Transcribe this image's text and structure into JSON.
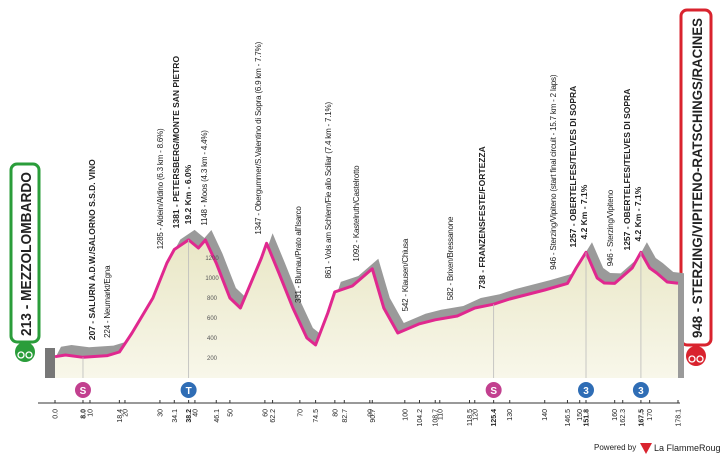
{
  "chart_data": {
    "type": "area",
    "start": "213 - MEZZOLOMBARDO",
    "finish": "948 - STERZING/VIPITENO-RATSCHINGS/RACINES",
    "x": [
      0,
      3,
      8,
      15,
      18.4,
      22,
      28,
      32,
      34.1,
      38.2,
      41,
      43,
      46.1,
      50,
      53,
      56,
      59,
      60.5,
      64,
      68,
      72,
      74.5,
      78,
      80,
      85,
      90.7,
      94,
      98,
      100,
      104.2,
      108.7,
      115,
      120,
      125.4,
      130,
      140,
      146.5,
      149,
      151.8,
      155,
      157,
      160,
      165,
      167.5,
      170,
      172,
      175,
      178.1
    ],
    "values": [
      213,
      230,
      207,
      224,
      260,
      450,
      800,
      1150,
      1285,
      1381,
      1300,
      1380,
      1148,
      800,
      700,
      950,
      1200,
      1347,
      1050,
      700,
      400,
      331,
      650,
      861,
      920,
      1092,
      700,
      450,
      480,
      542,
      582,
      620,
      700,
      738,
      790,
      880,
      946,
      1100,
      1257,
      1000,
      950,
      946,
      1100,
      1257,
      1100,
      1050,
      960,
      948
    ],
    "color": "#e0288f",
    "xlim": [
      0,
      178.1
    ],
    "ylim": [
      0,
      1400
    ],
    "yticks": [
      200,
      400,
      600,
      800,
      1000,
      1200
    ],
    "xticks": [
      {
        "value": 0,
        "label": "0.0"
      },
      {
        "value": 8,
        "label": "8.0"
      },
      10,
      18.4,
      20,
      30,
      34.1,
      38.2,
      40,
      46.1,
      50,
      60,
      62.2,
      70,
      74.5,
      80,
      82.7,
      90,
      90.7,
      100,
      104.2,
      108.7,
      110,
      118.5,
      120,
      125.4,
      130,
      140,
      146.5,
      150,
      151.8,
      160,
      162.3,
      167.5,
      170,
      178.1
    ],
    "annotations": [
      "207 - SALURN A.D.W./SALORNO S.S.D. VINO",
      "224 - Neumarkt/Egna",
      "1285 - Aldein/Aldino (6.3 km - 8.6%)",
      "1381 - PETERSBERG/MONTE SAN PIETRO",
      "19.2 Km - 6.0%",
      "1148 - Moos (4.3 km - 4.4%)",
      "1347 - Obergummer/S.Valentino di Sopra (6.9 km - 7.7%)",
      "331 - Blumau/Prato all'Isarco",
      "861 - Vols am Schlern/Fie allo Sciliar (7.4 km - 7.1%)",
      "1092 - Kastelruth/Castelrotto",
      "542 - Klausen/Chiusa",
      "582 - Brixen/Bressanone",
      "738 - FRANZENSFESTE/FORTEZZA",
      "946 - Sterzing/Vipiteno (start final circuit - 15.7 km - 2 laps)",
      "1257 - OBERTELFES/TELVES DI SOPRA",
      "4.2 Km - 7.1%",
      "946 - Sterzing/Vipiteno",
      "1257 - OBERTELFES/TELVES DI SOPRA",
      "4.2 Km - 7.1%"
    ],
    "markers": [
      {
        "symbol": "S",
        "color": "#c2408f"
      },
      {
        "symbol": "T",
        "color": "#2f6db5"
      },
      {
        "symbol": "S",
        "color": "#c2408f"
      },
      {
        "symbol": "3",
        "color": "#2f6db5"
      },
      {
        "symbol": "3",
        "color": "#2f6db5"
      }
    ],
    "footer": {
      "powered": "Powered by",
      "brand": "La FlammeRouge"
    }
  }
}
